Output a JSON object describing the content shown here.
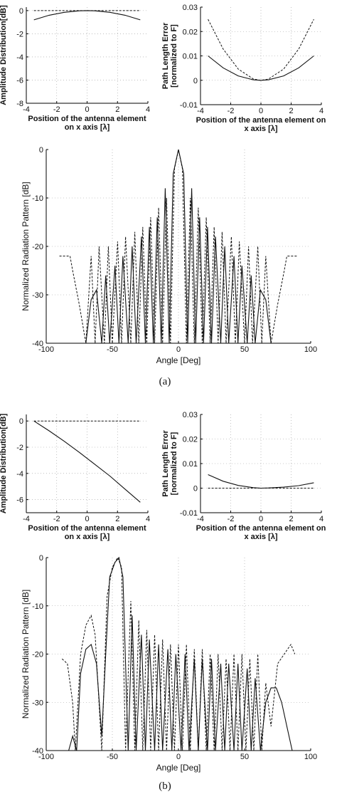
{
  "chart_data": [
    {
      "type": "line",
      "panel": "a-amplitude",
      "xlabel": [
        "Position of the antenna element",
        "on x axis [λ]"
      ],
      "ylabel": "Amplitude Distribution[dB]",
      "xlim": [
        -4,
        4
      ],
      "ylim": [
        -8,
        0.3
      ],
      "xticks": [
        -4,
        -2,
        0,
        2,
        4
      ],
      "yticks": [
        -8,
        -6,
        -4,
        -2,
        0
      ],
      "series": [
        {
          "style": "solid",
          "x": [
            -3.5,
            -2.5,
            -1.5,
            -0.5,
            0,
            0.5,
            1.5,
            2.5,
            3.5
          ],
          "y": [
            -0.8,
            -0.4,
            -0.15,
            -0.02,
            0,
            -0.02,
            -0.15,
            -0.4,
            -0.8
          ]
        },
        {
          "style": "dashed",
          "x": [
            -3.5,
            3.5
          ],
          "y": [
            0,
            0
          ]
        }
      ]
    },
    {
      "type": "line",
      "panel": "a-path-error",
      "xlabel": [
        "Position of the antenna element on",
        "x axis [λ]"
      ],
      "ylabel": [
        "Path Length Error",
        "[normalized to F]"
      ],
      "xlim": [
        -4,
        4
      ],
      "ylim": [
        -0.01,
        0.03
      ],
      "xticks": [
        -4,
        -2,
        0,
        2,
        4
      ],
      "yticks": [
        -0.01,
        0,
        0.01,
        0.02,
        0.03
      ],
      "series": [
        {
          "style": "solid",
          "x": [
            -3.5,
            -2.5,
            -1.5,
            -0.5,
            0,
            0.5,
            1.5,
            2.5,
            3.5
          ],
          "y": [
            0.01,
            0.0051,
            0.0018,
            0.0002,
            0,
            0.0002,
            0.0018,
            0.0051,
            0.01
          ]
        },
        {
          "style": "dashed",
          "x": [
            -3.5,
            -2.5,
            -1.5,
            -0.5,
            0,
            0.5,
            1.5,
            2.5,
            3.5
          ],
          "y": [
            0.025,
            0.0128,
            0.0046,
            0.0005,
            0,
            0.0005,
            0.0046,
            0.0128,
            0.025
          ]
        }
      ]
    },
    {
      "type": "line",
      "panel": "a-pattern",
      "xlabel": "Angle [Deg]",
      "ylabel": "Normalized Radiation Pattern [dB]",
      "xlim": [
        -100,
        100
      ],
      "ylim": [
        -40,
        0
      ],
      "xticks": [
        -100,
        -50,
        0,
        50,
        100
      ],
      "yticks": [
        -40,
        -30,
        -20,
        -10,
        0
      ],
      "series": [
        {
          "style": "solid",
          "x": [
            -84,
            -70,
            -66,
            -62,
            -58,
            -55,
            -52,
            -48,
            -45,
            -42,
            -38,
            -35,
            -32,
            -28,
            -25,
            -22,
            -19,
            -16,
            -13,
            -10,
            -7,
            -4,
            0,
            4,
            7,
            10,
            13,
            16,
            19,
            22,
            25,
            28,
            32,
            35,
            38,
            42,
            45,
            48,
            52,
            55,
            58,
            62,
            66,
            70,
            84
          ],
          "y": [
            -40,
            -40,
            -31,
            -29,
            -40,
            -26,
            -40,
            -24,
            -40,
            -22,
            -40,
            -20,
            -40,
            -18,
            -40,
            -16,
            -40,
            -14,
            -40,
            -8,
            -40,
            -5,
            0,
            -5,
            -40,
            -8,
            -40,
            -14,
            -40,
            -16,
            -40,
            -18,
            -40,
            -20,
            -40,
            -22,
            -40,
            -24,
            -40,
            -26,
            -40,
            -29,
            -31,
            -40,
            -40
          ]
        },
        {
          "style": "dashed",
          "x": [
            -90,
            -82,
            -80,
            -75,
            -70,
            -66,
            -63,
            -60,
            -56,
            -53,
            -50,
            -46,
            -43,
            -40,
            -36,
            -33,
            -30,
            -27,
            -24,
            -21,
            -18,
            -15,
            -12,
            -9,
            -6,
            -3,
            0,
            3,
            6,
            9,
            12,
            15,
            18,
            21,
            24,
            27,
            30,
            33,
            36,
            40,
            43,
            46,
            50,
            53,
            56,
            60,
            63,
            66,
            70,
            75,
            80,
            82,
            90
          ],
          "y": [
            -22,
            -22,
            -25,
            -32,
            -40,
            -22,
            -40,
            -20,
            -40,
            -20,
            -40,
            -19,
            -40,
            -18,
            -40,
            -17,
            -40,
            -16,
            -40,
            -14,
            -40,
            -12,
            -40,
            -10,
            -40,
            -4,
            0,
            -4,
            -40,
            -10,
            -40,
            -12,
            -40,
            -14,
            -40,
            -16,
            -40,
            -17,
            -40,
            -18,
            -40,
            -19,
            -40,
            -20,
            -40,
            -20,
            -40,
            -22,
            -40,
            -32,
            -25,
            -22,
            -22
          ]
        }
      ]
    },
    {
      "type": "line",
      "panel": "b-amplitude",
      "xlabel": [
        "Position of the antenna element",
        "on x axis [λ]"
      ],
      "ylabel": "Amplitude Distribution[dB]",
      "xlim": [
        -4,
        4
      ],
      "ylim": [
        -7,
        0.5
      ],
      "xticks": [
        -4,
        -2,
        0,
        2,
        4
      ],
      "yticks": [
        -6,
        -4,
        -2,
        0
      ],
      "series": [
        {
          "style": "solid",
          "x": [
            -3.5,
            -2.5,
            -1.5,
            -0.5,
            0.5,
            1.5,
            2.5,
            3.5
          ],
          "y": [
            0,
            -0.75,
            -1.55,
            -2.4,
            -3.3,
            -4.2,
            -5.2,
            -6.2
          ]
        },
        {
          "style": "dashed",
          "x": [
            -3.5,
            3.5
          ],
          "y": [
            0,
            0
          ]
        }
      ]
    },
    {
      "type": "line",
      "panel": "b-path-error",
      "xlabel": [
        "Position of the antenna element on",
        "x axis [λ]"
      ],
      "ylabel": [
        "Path Length Error",
        "[normalized to F]"
      ],
      "xlim": [
        -4,
        4
      ],
      "ylim": [
        -0.01,
        0.03
      ],
      "xticks": [
        -4,
        -2,
        0,
        2,
        4
      ],
      "yticks": [
        -0.01,
        0,
        0.01,
        0.02,
        0.03
      ],
      "series": [
        {
          "style": "solid",
          "x": [
            -3.5,
            -2.5,
            -1.5,
            -0.5,
            0,
            0.5,
            1.5,
            2.5,
            3.5
          ],
          "y": [
            0.0055,
            0.0028,
            0.0011,
            0.0002,
            0,
            0.0001,
            0.0004,
            0.001,
            0.0022
          ]
        },
        {
          "style": "dashed",
          "x": [
            -3.5,
            3.5
          ],
          "y": [
            0,
            0
          ]
        }
      ]
    },
    {
      "type": "line",
      "panel": "b-pattern",
      "xlabel": "Angle [Deg]",
      "ylabel": "Normalized Radiation Pattern [dB]",
      "xlim": [
        -100,
        100
      ],
      "ylim": [
        -40,
        0
      ],
      "xticks": [
        -100,
        -50,
        0,
        50,
        100
      ],
      "yticks": [
        -40,
        -30,
        -20,
        -10,
        0
      ],
      "series": [
        {
          "style": "solid",
          "x": [
            -83,
            -80,
            -77,
            -74,
            -70,
            -66,
            -62,
            -58,
            -55,
            -52,
            -48,
            -45,
            -42,
            -38,
            -35,
            -32,
            -28,
            -25,
            -22,
            -18,
            -15,
            -12,
            -8,
            -5,
            -2,
            2,
            5,
            8,
            12,
            15,
            18,
            22,
            25,
            28,
            32,
            35,
            38,
            42,
            45,
            48,
            52,
            55,
            58,
            62,
            66,
            70,
            74,
            78,
            82,
            86
          ],
          "y": [
            -40,
            -37,
            -40,
            -24,
            -19,
            -18,
            -22,
            -37,
            -20,
            -4,
            -1,
            0,
            -4,
            -40,
            -12,
            -40,
            -16,
            -40,
            -17,
            -40,
            -18,
            -40,
            -19,
            -40,
            -20,
            -40,
            -20,
            -40,
            -21,
            -40,
            -21,
            -40,
            -21,
            -40,
            -22,
            -40,
            -22,
            -40,
            -22,
            -40,
            -23,
            -40,
            -25,
            -40,
            -30,
            -27,
            -27,
            -30,
            -35,
            -40
          ]
        },
        {
          "style": "dashed",
          "x": [
            -88,
            -84,
            -80,
            -78,
            -74,
            -70,
            -66,
            -63,
            -58,
            -54,
            -50,
            -46,
            -43,
            -40,
            -36,
            -33,
            -30,
            -27,
            -24,
            -21,
            -18,
            -15,
            -12,
            -9,
            -6,
            -3,
            0,
            3,
            6,
            9,
            12,
            15,
            18,
            21,
            24,
            27,
            30,
            33,
            36,
            39,
            42,
            45,
            48,
            51,
            54,
            57,
            60,
            63,
            66,
            70,
            75,
            80,
            85,
            88
          ],
          "y": [
            -21,
            -22,
            -30,
            -40,
            -20,
            -14,
            -12,
            -16,
            -40,
            -8,
            -2,
            0,
            -2,
            -40,
            -9,
            -40,
            -13,
            -40,
            -15,
            -40,
            -16,
            -40,
            -17,
            -40,
            -18,
            -40,
            -18,
            -40,
            -18,
            -40,
            -19,
            -40,
            -19,
            -40,
            -20,
            -40,
            -20,
            -40,
            -21,
            -40,
            -20,
            -40,
            -20,
            -40,
            -21,
            -40,
            -20,
            -40,
            -26,
            -35,
            -22,
            -20,
            -18,
            -20
          ]
        }
      ]
    }
  ],
  "captions": [
    "(a)",
    "(b)"
  ]
}
